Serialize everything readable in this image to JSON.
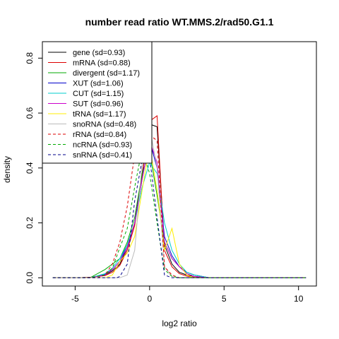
{
  "chart_data": {
    "type": "line",
    "title": "number read ratio WT.MMS.2/rad50.G1.1",
    "xlabel": "log2 ratio",
    "ylabel": "density",
    "xlim": [
      -7.2,
      11.2
    ],
    "ylim": [
      -0.03,
      0.86
    ],
    "x_ticks": [
      -5,
      0,
      5,
      10
    ],
    "x_tick_labels": [
      "-5",
      "0",
      "5",
      "10"
    ],
    "y_ticks": [
      0.0,
      0.2,
      0.4,
      0.6,
      0.8
    ],
    "y_tick_labels": [
      "0.0",
      "0.2",
      "0.4",
      "0.6",
      "0.8"
    ],
    "grid": false,
    "legend_position": "top-left",
    "series": [
      {
        "name": "gene (sd=0.93)",
        "color": "#000000",
        "dash": "solid",
        "x": [
          -6.5,
          -5,
          -4,
          -3,
          -2.5,
          -2,
          -1.5,
          -1,
          -0.5,
          0,
          0.5,
          1,
          1.5,
          2,
          2.5,
          3,
          4,
          5,
          10.5
        ],
        "y": [
          0,
          0,
          0.002,
          0.01,
          0.025,
          0.05,
          0.11,
          0.2,
          0.38,
          0.56,
          0.55,
          0.12,
          0.05,
          0.02,
          0.01,
          0.005,
          0,
          0,
          0
        ]
      },
      {
        "name": "mRNA (sd=0.88)",
        "color": "#dd0000",
        "dash": "solid",
        "x": [
          -6.5,
          -5,
          -4,
          -3,
          -2.5,
          -2,
          -1.5,
          -1,
          -0.5,
          0,
          0.5,
          1,
          1.5,
          2,
          2.5,
          3,
          4,
          5,
          10.5
        ],
        "y": [
          0,
          0,
          0.002,
          0.008,
          0.02,
          0.045,
          0.1,
          0.19,
          0.37,
          0.57,
          0.59,
          0.1,
          0.04,
          0.015,
          0.006,
          0.002,
          0,
          0,
          0
        ]
      },
      {
        "name": "divergent (sd=1.17)",
        "color": "#00aa00",
        "dash": "solid",
        "x": [
          -6.5,
          -4,
          -3,
          -2.5,
          -2,
          -1.5,
          -1,
          -0.5,
          0,
          0.5,
          1,
          1.5,
          2,
          2.5,
          3,
          4,
          10.5
        ],
        "y": [
          0,
          0,
          0.03,
          0.05,
          0.07,
          0.13,
          0.22,
          0.38,
          0.46,
          0.3,
          0.13,
          0.07,
          0.04,
          0.02,
          0.01,
          0,
          0
        ]
      },
      {
        "name": "XUT (sd=1.06)",
        "color": "#0000cc",
        "dash": "solid",
        "x": [
          -6.5,
          -4,
          -3,
          -2.5,
          -2,
          -1.5,
          -1,
          -0.5,
          0,
          0.5,
          1,
          1.5,
          2,
          2.5,
          3,
          4,
          10.5
        ],
        "y": [
          0,
          0,
          0.012,
          0.03,
          0.06,
          0.12,
          0.2,
          0.36,
          0.5,
          0.4,
          0.15,
          0.08,
          0.04,
          0.02,
          0.01,
          0,
          0
        ]
      },
      {
        "name": "CUT (sd=1.15)",
        "color": "#00cccc",
        "dash": "solid",
        "x": [
          -6.5,
          -4,
          -3,
          -2.5,
          -2,
          -1.5,
          -1,
          -0.5,
          0,
          0.5,
          1,
          1.5,
          2,
          2.5,
          3,
          4,
          10.5
        ],
        "y": [
          0,
          0,
          0.015,
          0.035,
          0.07,
          0.12,
          0.2,
          0.33,
          0.42,
          0.38,
          0.2,
          0.1,
          0.05,
          0.02,
          0.01,
          0,
          0
        ]
      },
      {
        "name": "SUT (sd=0.96)",
        "color": "#cc00cc",
        "dash": "solid",
        "x": [
          -6.5,
          -4,
          -3,
          -2.5,
          -2,
          -1.5,
          -1,
          -0.5,
          0,
          0.5,
          1,
          1.5,
          2,
          2.5,
          3,
          4,
          10.5
        ],
        "y": [
          0,
          0,
          0.01,
          0.03,
          0.06,
          0.11,
          0.2,
          0.36,
          0.5,
          0.42,
          0.13,
          0.07,
          0.04,
          0.015,
          0.005,
          0,
          0
        ]
      },
      {
        "name": "tRNA (sd=1.17)",
        "color": "#ffee00",
        "dash": "solid",
        "x": [
          -6.5,
          -3,
          -2.5,
          -2,
          -1.5,
          -1,
          -0.5,
          0,
          0.5,
          1,
          1.5,
          2,
          2.5,
          3,
          10.5
        ],
        "y": [
          0,
          0,
          0.01,
          0.06,
          0.09,
          0.15,
          0.32,
          0.48,
          0.32,
          0.1,
          0.18,
          0.05,
          0.01,
          0,
          0
        ]
      },
      {
        "name": "snoRNA (sd=0.48)",
        "color": "#bbbbbb",
        "dash": "solid",
        "x": [
          -6.5,
          -2,
          -1.5,
          -1,
          -0.5,
          0,
          0.5,
          1,
          1.5,
          2,
          10.5
        ],
        "y": [
          0,
          0,
          0.01,
          0.1,
          0.42,
          0.55,
          0.4,
          0.04,
          0.005,
          0,
          0
        ]
      },
      {
        "name": "rRNA (sd=0.84)",
        "color": "#dd0000",
        "dash": "dashed",
        "x": [
          -6.5,
          -3.5,
          -3,
          -2.5,
          -2,
          -1.5,
          -1,
          -0.5,
          0,
          0.5,
          1,
          1.5,
          2,
          2.5,
          10.5
        ],
        "y": [
          0,
          0,
          0.01,
          0.05,
          0.13,
          0.26,
          0.45,
          0.5,
          0.52,
          0.5,
          0.04,
          0.01,
          0,
          0,
          0
        ]
      },
      {
        "name": "ncRNA (sd=0.93)",
        "color": "#00aa00",
        "dash": "dashed",
        "x": [
          -6.5,
          -4,
          -3,
          -2.5,
          -2,
          -1.5,
          -1,
          -0.5,
          0,
          0.5,
          1,
          1.5,
          2,
          2.5,
          3,
          10.5
        ],
        "y": [
          0,
          0,
          0.01,
          0.035,
          0.11,
          0.18,
          0.33,
          0.47,
          0.38,
          0.2,
          0.03,
          0.005,
          0,
          0,
          0,
          0
        ]
      },
      {
        "name": "snRNA (sd=0.41)",
        "color": "#00008b",
        "dash": "dashed",
        "x": [
          -6.5,
          -2.2,
          -2,
          -1.5,
          -1,
          -0.5,
          0,
          0.5,
          1,
          1.5,
          10.5
        ],
        "y": [
          0,
          0,
          0.005,
          0.05,
          0.28,
          0.43,
          0.44,
          0.22,
          0.01,
          0,
          0
        ]
      }
    ]
  }
}
